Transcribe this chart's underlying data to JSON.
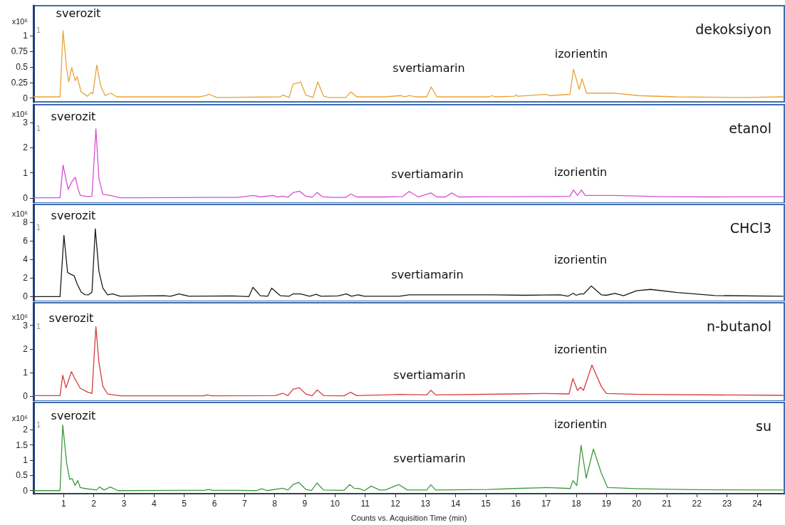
{
  "chart_data": [
    {
      "type": "line",
      "title": "dekoksiyon",
      "ylabel": "x10⁶",
      "xlim": [
        0,
        24.9
      ],
      "ylim": [
        -0.06,
        1.48
      ],
      "yticks": [
        0,
        0.25,
        0.5,
        0.75,
        1
      ],
      "tick_labels": "y",
      "x": [
        0,
        0.88,
        0.98,
        1.1,
        1.17,
        1.27,
        1.38,
        1.45,
        1.58,
        1.79,
        1.91,
        1.97,
        2.1,
        2.23,
        2.38,
        2.56,
        2.76,
        3.05,
        5.5,
        5.62,
        5.83,
        6.08,
        8.19,
        8.27,
        8.48,
        8.61,
        8.69,
        8.86,
        9.03,
        9.27,
        9.43,
        9.62,
        9.79,
        10.35,
        10.53,
        10.72,
        11.23,
        11.66,
        12.16,
        12.32,
        12.46,
        12.67,
        13.04,
        13.19,
        13.38,
        14.0,
        15.1,
        15.2,
        15.3,
        15.95,
        16.0,
        16.05,
        17.01,
        17.1,
        17.79,
        17.91,
        18.1,
        18.19,
        18.34,
        19.23,
        20.07,
        21.3,
        23.4,
        24.87
      ],
      "series": [
        {
          "color": "#e8a23a",
          "values": [
            0.02,
            0.02,
            1.08,
            0.47,
            0.26,
            0.49,
            0.28,
            0.34,
            0.1,
            0.03,
            0.09,
            0.07,
            0.53,
            0.19,
            0.04,
            0.08,
            0.02,
            0.02,
            0.02,
            0.03,
            0.06,
            0.01,
            0.02,
            0.05,
            0.01,
            0.23,
            0.23,
            0.26,
            0.05,
            0.01,
            0.26,
            0.03,
            0.01,
            0.01,
            0.1,
            0.02,
            0.02,
            0.02,
            0.04,
            0.02,
            0.04,
            0.02,
            0.02,
            0.18,
            0.02,
            0.02,
            0.02,
            0.04,
            0.02,
            0.03,
            0.05,
            0.03,
            0.06,
            0.04,
            0.06,
            0.46,
            0.14,
            0.31,
            0.08,
            0.08,
            0.04,
            0.02,
            0.01,
            0.02
          ]
        }
      ],
      "annotations": [
        "1",
        "sverozit",
        "svertiamarin",
        "izorientin"
      ]
    },
    {
      "type": "line",
      "title": "etanol",
      "ylabel": "x10⁶",
      "xlim": [
        0,
        24.9
      ],
      "ylim": [
        -0.2,
        3.7
      ],
      "yticks": [
        0,
        1,
        2,
        3
      ],
      "tick_labels": "y",
      "x": [
        0,
        0.88,
        0.98,
        1.15,
        1.27,
        1.39,
        1.47,
        1.55,
        1.79,
        1.94,
        2.07,
        2.17,
        2.3,
        2.55,
        2.88,
        5.83,
        6.76,
        7.3,
        7.52,
        7.94,
        8.1,
        8.27,
        8.44,
        8.61,
        8.82,
        9.03,
        9.24,
        9.41,
        9.58,
        9.88,
        10.35,
        10.53,
        10.72,
        11.56,
        11.66,
        12.25,
        12.46,
        12.76,
        13.18,
        13.38,
        13.66,
        13.87,
        14.1,
        15.1,
        16.0,
        17.05,
        17.79,
        17.91,
        18.04,
        18.17,
        18.3,
        19.23,
        20.9,
        22.6,
        24.87
      ],
      "series": [
        {
          "color": "#d64fd6",
          "values": [
            0.01,
            0.01,
            1.31,
            0.34,
            0.64,
            0.82,
            0.39,
            0.11,
            0.05,
            0.07,
            2.74,
            0.77,
            0.14,
            0.1,
            0.01,
            0.02,
            0.02,
            0.1,
            0.04,
            0.1,
            0.04,
            0.07,
            0.03,
            0.21,
            0.27,
            0.07,
            0.03,
            0.22,
            0.05,
            0.02,
            0.02,
            0.16,
            0.04,
            0.04,
            0.04,
            0.06,
            0.26,
            0.04,
            0.2,
            0.04,
            0.04,
            0.2,
            0.04,
            0.05,
            0.05,
            0.06,
            0.07,
            0.32,
            0.1,
            0.32,
            0.1,
            0.1,
            0.05,
            0.04,
            0.05
          ]
        }
      ],
      "annotations": [
        "1",
        "sverozit",
        "svertiamarin",
        "izorientin"
      ]
    },
    {
      "type": "line",
      "title": "CHCl3",
      "ylabel": "x10⁶",
      "xlim": [
        0,
        24.9
      ],
      "ylim": [
        -0.5,
        9.9
      ],
      "yticks": [
        0,
        2,
        4,
        6,
        8
      ],
      "tick_labels": "y",
      "x": [
        0,
        0.88,
        1.01,
        1.13,
        1.24,
        1.35,
        1.45,
        1.58,
        1.7,
        1.83,
        1.94,
        2.05,
        2.17,
        2.3,
        2.46,
        2.63,
        2.88,
        3.64,
        4.32,
        4.55,
        4.82,
        5.16,
        6.59,
        7.14,
        7.28,
        7.52,
        7.77,
        7.9,
        8.19,
        8.48,
        8.61,
        8.86,
        9.16,
        9.37,
        9.54,
        10.1,
        10.38,
        10.55,
        10.76,
        10.97,
        12.13,
        12.46,
        13.18,
        13.8,
        15.2,
        16.3,
        17.47,
        17.73,
        17.9,
        18.0,
        18.14,
        18.25,
        18.5,
        18.83,
        19.0,
        19.28,
        19.57,
        20.0,
        20.46,
        21.35,
        22.6,
        24.87
      ],
      "series": [
        {
          "color": "#1a1a1a",
          "values": [
            0,
            0,
            6.59,
            2.6,
            2.4,
            2.24,
            1.35,
            0.5,
            0.22,
            0.2,
            0.5,
            7.28,
            2.74,
            0.92,
            0.2,
            0.3,
            0.05,
            0.08,
            0.1,
            0.05,
            0.3,
            0.05,
            0.08,
            0,
            1.01,
            0.1,
            0.05,
            0.92,
            0.1,
            0.05,
            0.3,
            0.3,
            0.05,
            0.25,
            0.05,
            0.08,
            0.3,
            0.05,
            0.2,
            0.05,
            0.05,
            0.2,
            0.2,
            0.2,
            0.2,
            0.15,
            0.2,
            0.05,
            0.36,
            0.15,
            0.3,
            0.3,
            1.15,
            0.2,
            0.15,
            0.35,
            0.1,
            0.64,
            0.78,
            0.45,
            0.12,
            0.05
          ]
        }
      ],
      "annotations": [
        "1",
        "sverozit",
        "svertiamarin",
        "izorientin"
      ]
    },
    {
      "type": "line",
      "title": "n-butanol",
      "ylabel": "x10⁶",
      "xlim": [
        0,
        24.9
      ],
      "ylim": [
        -0.2,
        3.95
      ],
      "yticks": [
        0,
        1,
        2,
        3
      ],
      "tick_labels": "y",
      "x": [
        0,
        0.88,
        0.97,
        1.08,
        1.26,
        1.37,
        1.55,
        1.79,
        1.94,
        2.07,
        2.17,
        2.3,
        2.46,
        2.88,
        5.66,
        5.75,
        5.9,
        8.02,
        8.26,
        8.44,
        8.61,
        8.82,
        9.03,
        9.24,
        9.41,
        9.62,
        10.3,
        10.51,
        10.72,
        11.66,
        12.16,
        13.04,
        13.18,
        13.34,
        15.95,
        16.96,
        17.76,
        17.89,
        18.04,
        18.14,
        18.24,
        18.52,
        18.83,
        19.0,
        20.1,
        24.87
      ],
      "series": [
        {
          "color": "#d83c3c",
          "values": [
            0.03,
            0.03,
            0.89,
            0.36,
            1.04,
            0.75,
            0.34,
            0.18,
            0.12,
            2.94,
            1.43,
            0.42,
            0.1,
            0.02,
            0.02,
            0.06,
            0.02,
            0.03,
            0.13,
            0.03,
            0.3,
            0.36,
            0.1,
            0.02,
            0.27,
            0.03,
            0.02,
            0.17,
            0.03,
            0.06,
            0.08,
            0.06,
            0.25,
            0.06,
            0.1,
            0.12,
            0.1,
            0.75,
            0.25,
            0.38,
            0.25,
            1.32,
            0.42,
            0.12,
            0.08,
            0.04
          ]
        }
      ],
      "annotations": [
        "1",
        "sverozit",
        "svertiamarin",
        "izorientin"
      ]
    },
    {
      "type": "line",
      "title": "su",
      "ylabel": "x10⁶",
      "xlabel": "Counts vs. Acquisition Time (min)",
      "xlim": [
        0,
        24.9
      ],
      "ylim": [
        -0.1,
        2.9
      ],
      "yticks": [
        0,
        0.5,
        1,
        1.5,
        2
      ],
      "xticks": [
        1,
        2,
        3,
        4,
        5,
        6,
        7,
        8,
        9,
        10,
        11,
        12,
        13,
        14,
        15,
        16,
        17,
        18,
        19,
        20,
        21,
        22,
        23,
        24
      ],
      "x": [
        0,
        0.88,
        0.97,
        1.1,
        1.2,
        1.28,
        1.38,
        1.47,
        1.55,
        1.7,
        2.09,
        2.19,
        2.34,
        2.55,
        2.8,
        5.66,
        5.79,
        5.95,
        6.76,
        7.4,
        7.56,
        7.75,
        8.26,
        8.44,
        8.61,
        8.8,
        9.03,
        9.22,
        9.4,
        9.62,
        10.3,
        10.49,
        10.63,
        10.8,
        10.97,
        11.2,
        11.48,
        11.66,
        12.12,
        12.4,
        13.04,
        13.18,
        13.34,
        15.1,
        15.95,
        17.0,
        17.8,
        17.89,
        18.02,
        18.16,
        18.33,
        18.57,
        18.83,
        19.04,
        20.1,
        21.8,
        24.87
      ],
      "series": [
        {
          "color": "#3d9a3d",
          "values": [
            0,
            0,
            2.16,
            0.91,
            0.37,
            0.4,
            0.17,
            0.33,
            0.1,
            0.07,
            0.02,
            0.12,
            0.02,
            0.12,
            0,
            0.01,
            0.04,
            0.01,
            0.01,
            0,
            0.06,
            0,
            0.08,
            0.02,
            0.2,
            0.27,
            0.04,
            0,
            0.25,
            0.02,
            0.01,
            0.2,
            0.08,
            0.07,
            0,
            0.15,
            0.02,
            0.02,
            0.2,
            0.02,
            0.02,
            0.19,
            0.02,
            0.04,
            0.07,
            0.1,
            0.07,
            0.33,
            0.17,
            1.49,
            0.41,
            1.37,
            0.58,
            0.1,
            0.06,
            0.03,
            0.02
          ]
        }
      ],
      "annotations": [
        "1",
        "sverozit",
        "svertiamarin",
        "izorientin"
      ]
    }
  ]
}
